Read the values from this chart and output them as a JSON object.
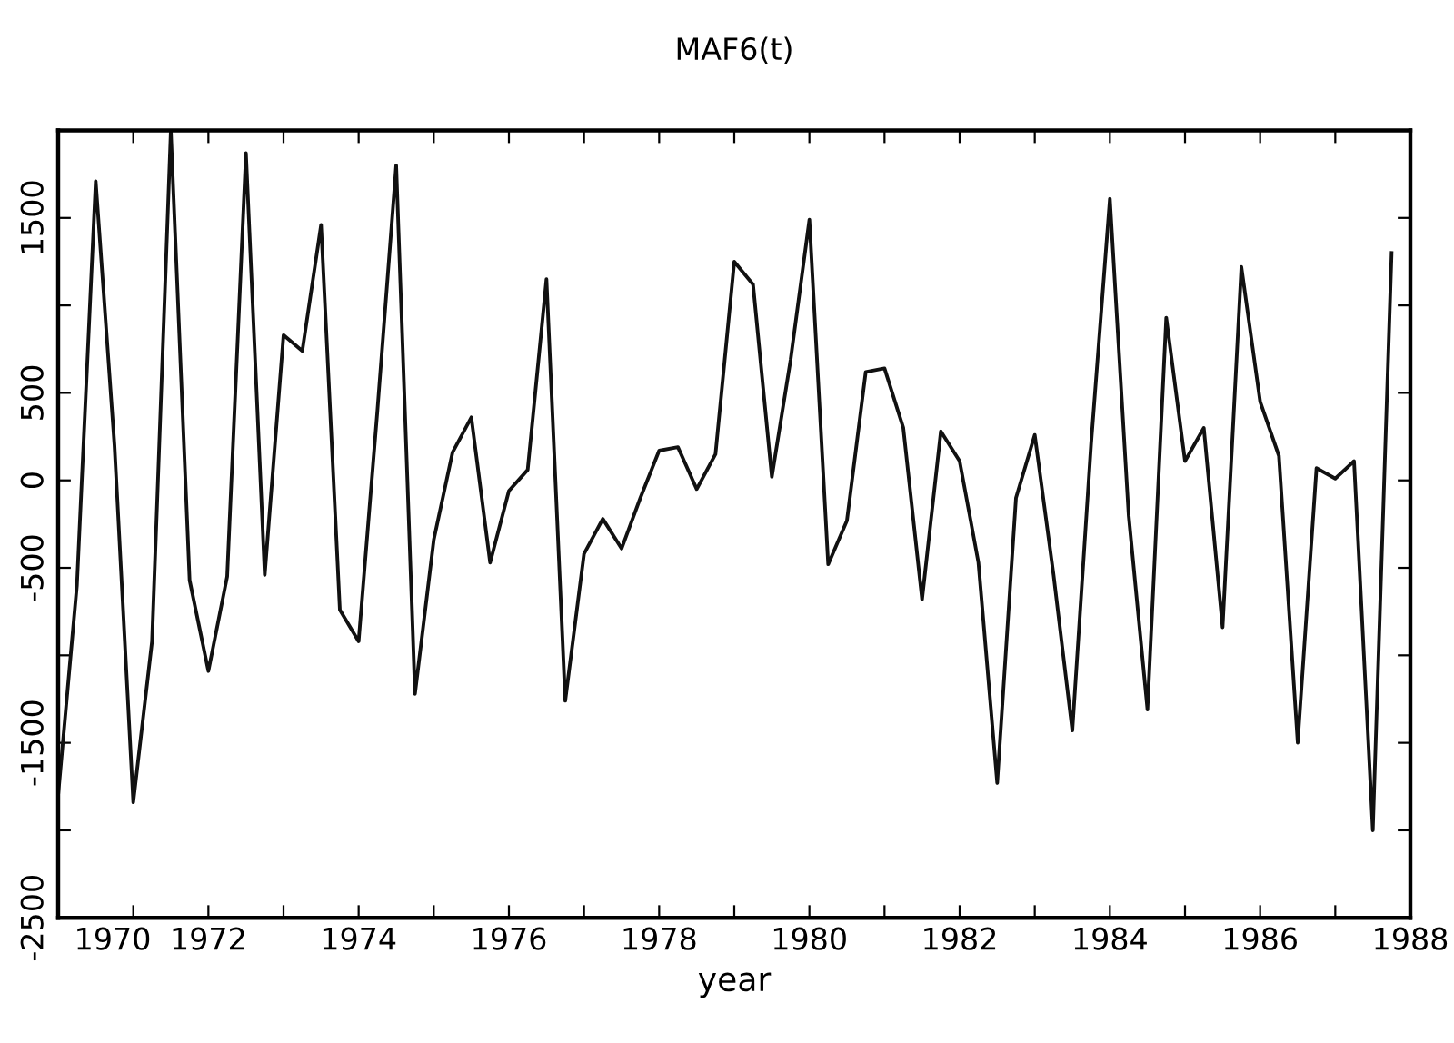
{
  "chart_data": {
    "type": "line",
    "title": "MAF6(t)",
    "xlabel": "year",
    "x": [
      1970.0,
      1970.25,
      1970.5,
      1970.75,
      1971.0,
      1971.25,
      1971.5,
      1971.75,
      1972.0,
      1972.25,
      1972.5,
      1972.75,
      1973.0,
      1973.25,
      1973.5,
      1973.75,
      1974.0,
      1974.25,
      1974.5,
      1974.75,
      1975.0,
      1975.25,
      1975.5,
      1975.75,
      1976.0,
      1976.25,
      1976.5,
      1976.75,
      1977.0,
      1977.25,
      1977.5,
      1977.75,
      1978.0,
      1978.25,
      1978.5,
      1978.75,
      1979.0,
      1979.25,
      1979.5,
      1979.75,
      1980.0,
      1980.25,
      1980.5,
      1980.75,
      1981.0,
      1981.25,
      1981.5,
      1981.75,
      1982.0,
      1982.25,
      1982.5,
      1982.75,
      1983.0,
      1983.25,
      1983.5,
      1983.75,
      1984.0,
      1984.25,
      1984.5,
      1984.75,
      1985.0,
      1985.25,
      1985.5,
      1985.75,
      1986.0,
      1986.25,
      1986.5,
      1986.75,
      1987.0,
      1987.25,
      1987.5,
      1987.75
    ],
    "series": [
      {
        "color": "#111111",
        "values": [
          -1800,
          -600,
          1710,
          200,
          -1840,
          -920,
          2000,
          -570,
          -1090,
          -550,
          1870,
          -540,
          830,
          740,
          1460,
          -740,
          -920,
          400,
          1800,
          -1220,
          -340,
          160,
          360,
          -470,
          -60,
          60,
          1150,
          -1260,
          -420,
          -220,
          -390,
          -100,
          170,
          190,
          -50,
          150,
          1250,
          1120,
          20,
          690,
          1490,
          -480,
          -230,
          620,
          640,
          300,
          -680,
          280,
          110,
          -470,
          -1730,
          -100,
          260,
          -540,
          -1430,
          210,
          1610,
          -200,
          -1310,
          930,
          110,
          300,
          -840,
          1220,
          450,
          140,
          -1500,
          70,
          10,
          110,
          -2000,
          1300
        ]
      }
    ],
    "xlim": [
      1970,
      1988
    ],
    "xticks": [
      1970,
      {
        "value": 1971,
        "label": null
      },
      1972,
      {
        "value": 1973,
        "label": null
      },
      1974,
      {
        "value": 1975,
        "label": null
      },
      1976,
      {
        "value": 1977,
        "label": null
      },
      1978,
      {
        "value": 1979,
        "label": null
      },
      1980,
      {
        "value": 1981,
        "label": null
      },
      1982,
      {
        "value": 1983,
        "label": null
      },
      1984,
      {
        "value": 1985,
        "label": null
      },
      1986,
      {
        "value": 1987,
        "label": null
      },
      1988
    ],
    "ylim": [
      -2500,
      2000
    ],
    "yticks": [
      -2500,
      {
        "value": -2000,
        "label": null
      },
      -1500,
      {
        "value": -1000,
        "label": null
      },
      -500,
      0,
      500,
      {
        "value": 1000,
        "label": null
      },
      1500
    ],
    "grid": false,
    "legend": false,
    "marker": "none",
    "line_style": "solid"
  }
}
